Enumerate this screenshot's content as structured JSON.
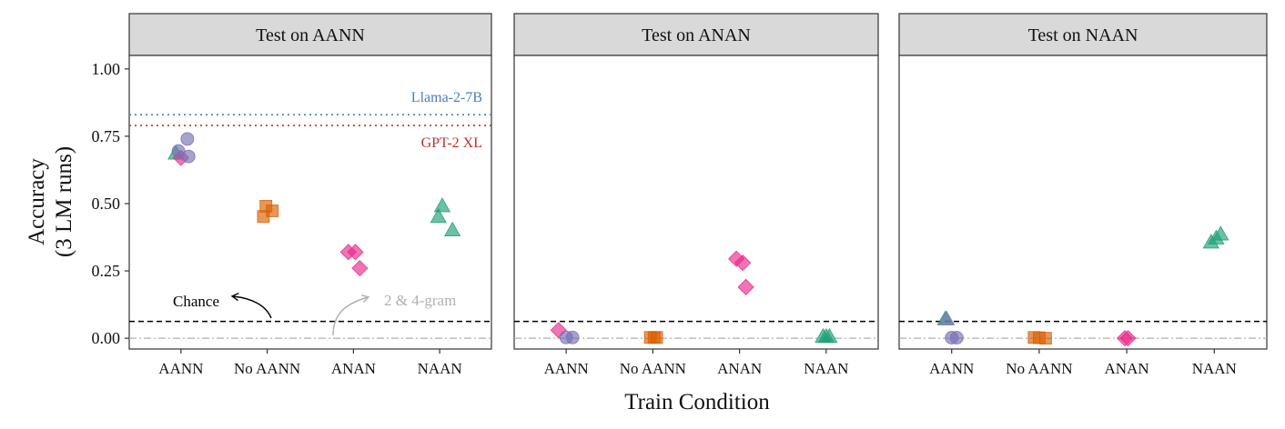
{
  "chart_data": {
    "type": "scatter",
    "title": "",
    "xlabel": "Train Condition",
    "ylabel_lines": [
      "Accuracy",
      "(3 LM runs)"
    ],
    "ylim": [
      -0.04,
      1.05
    ],
    "yticks": [
      0.0,
      0.25,
      0.5,
      0.75,
      1.0
    ],
    "ytick_labels": [
      "0.00",
      "0.25",
      "0.50",
      "0.75",
      "1.00"
    ],
    "categories": [
      "AANN",
      "No AANN",
      "ANAN",
      "NAAN"
    ],
    "colors": {
      "AANN": "#7570b3",
      "No AANN": "#d95f02",
      "ANAN": "#e7298a",
      "NAAN": "#1b9e77",
      "llama": "#4a7fbf",
      "gpt2": "#c0302a",
      "chance": "#000000",
      "ngram": "#b0b0b0",
      "strip_bg": "#d9d9d9"
    },
    "chance_level": 0.0625,
    "ngram_level": 0.0,
    "annotations": {
      "chance_label": "Chance",
      "ngram_label": "2 & 4-gram",
      "llama_label": "Llama-2-7B",
      "gpt2_label": "GPT-2 XL"
    },
    "panels": [
      {
        "title": "Test on AANN",
        "llama": 0.83,
        "gpt2": 0.79,
        "points": [
          {
            "cat": "AANN",
            "shape": "triangle",
            "color": "NAAN",
            "y": 0.685,
            "j": -0.08
          },
          {
            "cat": "AANN",
            "shape": "diamond",
            "color": "ANAN",
            "y": 0.67,
            "j": 0.0
          },
          {
            "cat": "AANN",
            "shape": "circle",
            "color": "AANN",
            "y": 0.695,
            "j": -0.04
          },
          {
            "cat": "AANN",
            "shape": "circle",
            "color": "AANN",
            "y": 0.74,
            "j": 0.1
          },
          {
            "cat": "AANN",
            "shape": "circle",
            "color": "AANN",
            "y": 0.675,
            "j": 0.12
          },
          {
            "cat": "No AANN",
            "shape": "square",
            "color": "No AANN",
            "y": 0.49,
            "j": -0.02
          },
          {
            "cat": "No AANN",
            "shape": "square",
            "color": "No AANN",
            "y": 0.473,
            "j": 0.08
          },
          {
            "cat": "No AANN",
            "shape": "square",
            "color": "No AANN",
            "y": 0.452,
            "j": -0.06
          },
          {
            "cat": "ANAN",
            "shape": "diamond",
            "color": "ANAN",
            "y": 0.32,
            "j": -0.08
          },
          {
            "cat": "ANAN",
            "shape": "diamond",
            "color": "ANAN",
            "y": 0.32,
            "j": 0.03
          },
          {
            "cat": "ANAN",
            "shape": "diamond",
            "color": "ANAN",
            "y": 0.26,
            "j": 0.1
          },
          {
            "cat": "NAAN",
            "shape": "triangle",
            "color": "NAAN",
            "y": 0.49,
            "j": 0.04
          },
          {
            "cat": "NAAN",
            "shape": "triangle",
            "color": "NAAN",
            "y": 0.45,
            "j": -0.02
          },
          {
            "cat": "NAAN",
            "shape": "triangle",
            "color": "NAAN",
            "y": 0.4,
            "j": 0.2
          }
        ]
      },
      {
        "title": "Test on ANAN",
        "points": [
          {
            "cat": "AANN",
            "shape": "diamond",
            "color": "ANAN",
            "y": 0.03,
            "j": -0.12
          },
          {
            "cat": "AANN",
            "shape": "circle",
            "color": "AANN",
            "y": 0.003,
            "j": 0.0
          },
          {
            "cat": "AANN",
            "shape": "circle",
            "color": "AANN",
            "y": 0.003,
            "j": 0.1
          },
          {
            "cat": "No AANN",
            "shape": "square",
            "color": "No AANN",
            "y": 0.003,
            "j": -0.04
          },
          {
            "cat": "No AANN",
            "shape": "square",
            "color": "No AANN",
            "y": 0.003,
            "j": 0.02
          },
          {
            "cat": "No AANN",
            "shape": "square",
            "color": "No AANN",
            "y": 0.003,
            "j": 0.06
          },
          {
            "cat": "ANAN",
            "shape": "diamond",
            "color": "ANAN",
            "y": 0.295,
            "j": -0.05
          },
          {
            "cat": "ANAN",
            "shape": "diamond",
            "color": "ANAN",
            "y": 0.28,
            "j": 0.05
          },
          {
            "cat": "ANAN",
            "shape": "diamond",
            "color": "ANAN",
            "y": 0.19,
            "j": 0.1
          },
          {
            "cat": "NAAN",
            "shape": "triangle",
            "color": "NAAN",
            "y": 0.005,
            "j": -0.05
          },
          {
            "cat": "NAAN",
            "shape": "triangle",
            "color": "NAAN",
            "y": 0.005,
            "j": 0.0
          },
          {
            "cat": "NAAN",
            "shape": "triangle",
            "color": "NAAN",
            "y": 0.005,
            "j": 0.05
          }
        ]
      },
      {
        "title": "Test on NAAN",
        "points": [
          {
            "cat": "AANN",
            "shape": "triangle",
            "color": "NAAN",
            "y": 0.07,
            "j": -0.1
          },
          {
            "cat": "AANN",
            "shape": "triangle",
            "color": "AANN",
            "y": 0.07,
            "j": -0.08
          },
          {
            "cat": "AANN",
            "shape": "circle",
            "color": "AANN",
            "y": 0.002,
            "j": 0.0
          },
          {
            "cat": "AANN",
            "shape": "circle",
            "color": "AANN",
            "y": 0.002,
            "j": 0.08
          },
          {
            "cat": "No AANN",
            "shape": "square",
            "color": "No AANN",
            "y": 0.003,
            "j": -0.08
          },
          {
            "cat": "No AANN",
            "shape": "square",
            "color": "No AANN",
            "y": 0.002,
            "j": 0.0
          },
          {
            "cat": "No AANN",
            "shape": "square",
            "color": "No AANN",
            "y": 0.0,
            "j": 0.1
          },
          {
            "cat": "ANAN",
            "shape": "diamond",
            "color": "ANAN",
            "y": 0.0,
            "j": -0.03
          },
          {
            "cat": "ANAN",
            "shape": "diamond",
            "color": "ANAN",
            "y": 0.0,
            "j": 0.02
          },
          {
            "cat": "NAAN",
            "shape": "triangle",
            "color": "NAAN",
            "y": 0.355,
            "j": -0.05
          },
          {
            "cat": "NAAN",
            "shape": "triangle",
            "color": "NAAN",
            "y": 0.37,
            "j": 0.03
          },
          {
            "cat": "NAAN",
            "shape": "triangle",
            "color": "NAAN",
            "y": 0.385,
            "j": 0.1
          }
        ]
      }
    ]
  }
}
